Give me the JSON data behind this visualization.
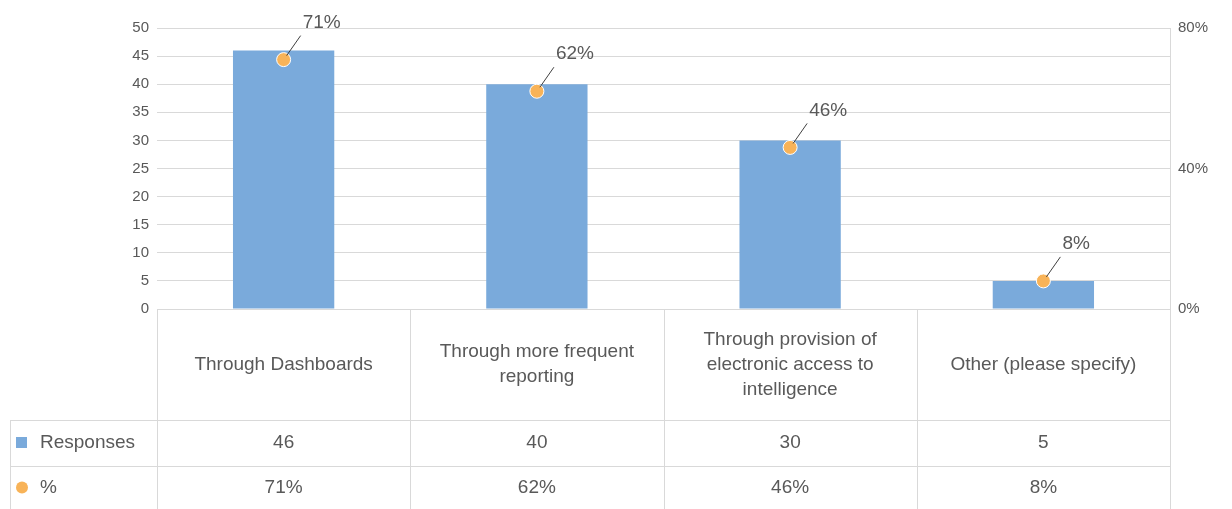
{
  "chart_data": {
    "type": "bar",
    "categories": [
      "Through Dashboards",
      "Through more frequent reporting",
      "Through provision of electronic access to intelligence",
      "Other (please specify)"
    ],
    "series": [
      {
        "name": "Responses",
        "color": "#7aaadb",
        "values": [
          46,
          40,
          30,
          5
        ],
        "value_labels": [
          "46",
          "40",
          "30",
          "5"
        ]
      },
      {
        "name": "%",
        "type": "scatter",
        "axis": "y2",
        "color": "#f8b358",
        "marker": "circle",
        "values": [
          71,
          62,
          46,
          8
        ],
        "value_labels": [
          "71%",
          "62%",
          "46%",
          "8%"
        ]
      }
    ],
    "ylim": [
      0,
      50
    ],
    "yticks": [
      0,
      5,
      10,
      15,
      20,
      25,
      30,
      35,
      40,
      45,
      50
    ],
    "y2lim": [
      0,
      80
    ],
    "y2ticks": [
      {
        "value": 0,
        "label": "0%"
      },
      {
        "value": 40,
        "label": "40%"
      },
      {
        "value": 80,
        "label": "80%"
      }
    ],
    "grid": "y",
    "legend": "bottom left"
  }
}
